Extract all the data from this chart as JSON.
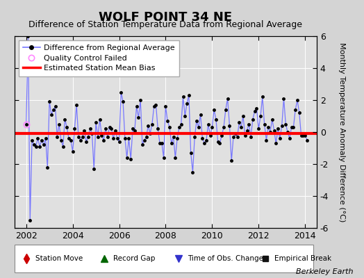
{
  "title": "WOLF POINT 34 NE",
  "subtitle": "Difference of Station Temperature Data from Regional Average",
  "ylabel": "Monthly Temperature Anomaly Difference (°C)",
  "bias_val": -0.1,
  "ylim": [
    -6,
    6
  ],
  "xlim": [
    2001.5,
    2014.5
  ],
  "xticks": [
    2002,
    2004,
    2006,
    2008,
    2010,
    2012,
    2014
  ],
  "yticks": [
    -6,
    -4,
    -2,
    0,
    2,
    4,
    6
  ],
  "bg_color": "#d4d4d4",
  "plot_bg_color": "#e0e0e0",
  "line_color": "#7777ff",
  "marker_color": "#000000",
  "bias_color": "#ff0000",
  "qc_color": "#ff88ff",
  "berkeley_earth_text": "Berkeley Earth",
  "data_y": [
    0.5,
    6.0,
    -5.5,
    -0.5,
    -0.8,
    -0.9,
    -0.4,
    -0.9,
    -0.5,
    -0.8,
    -0.4,
    -2.2,
    1.9,
    1.1,
    1.4,
    1.6,
    -0.3,
    0.5,
    -0.5,
    -0.9,
    0.8,
    0.3,
    -0.4,
    -0.5,
    -1.2,
    0.2,
    1.7,
    -0.3,
    -0.5,
    -0.3,
    0.1,
    -0.6,
    -0.3,
    0.2,
    -0.1,
    -2.3,
    0.6,
    -0.3,
    0.8,
    -0.2,
    -0.5,
    0.2,
    -0.3,
    0.3,
    0.2,
    -0.4,
    0.1,
    -0.4,
    -0.6,
    2.5,
    1.9,
    -0.4,
    -1.6,
    -0.4,
    -1.7,
    0.2,
    0.1,
    1.6,
    0.9,
    2.0,
    -0.8,
    -0.5,
    -0.3,
    0.4,
    -0.1,
    0.5,
    1.6,
    1.7,
    0.2,
    -0.7,
    -0.7,
    -1.6,
    1.6,
    0.7,
    0.3,
    -0.7,
    -0.3,
    -1.6,
    -0.4,
    0.3,
    0.5,
    2.2,
    1.0,
    1.8,
    2.3,
    -1.3,
    -2.5,
    -0.3,
    0.7,
    0.3,
    1.1,
    -0.4,
    -0.7,
    -0.5,
    0.5,
    -0.2,
    0.3,
    1.4,
    0.8,
    -0.6,
    -0.7,
    -0.2,
    0.3,
    1.4,
    2.1,
    0.4,
    -1.8,
    -0.3,
    -0.1,
    -0.3,
    0.6,
    0.3,
    1.0,
    -0.2,
    0.1,
    0.5,
    -0.3,
    0.8,
    1.3,
    1.5,
    0.2,
    1.0,
    2.2,
    0.5,
    -0.5,
    0.3,
    0.0,
    0.8,
    0.1,
    -0.7,
    0.2,
    -0.4,
    0.4,
    2.1,
    0.5,
    0.0,
    -0.4,
    0.3,
    0.3,
    1.4,
    2.0,
    1.2,
    -0.2,
    -0.2,
    -0.2,
    -0.5
  ],
  "qc_idx": 0,
  "title_fontsize": 13,
  "subtitle_fontsize": 9,
  "tick_fontsize": 9,
  "ylabel_fontsize": 8
}
